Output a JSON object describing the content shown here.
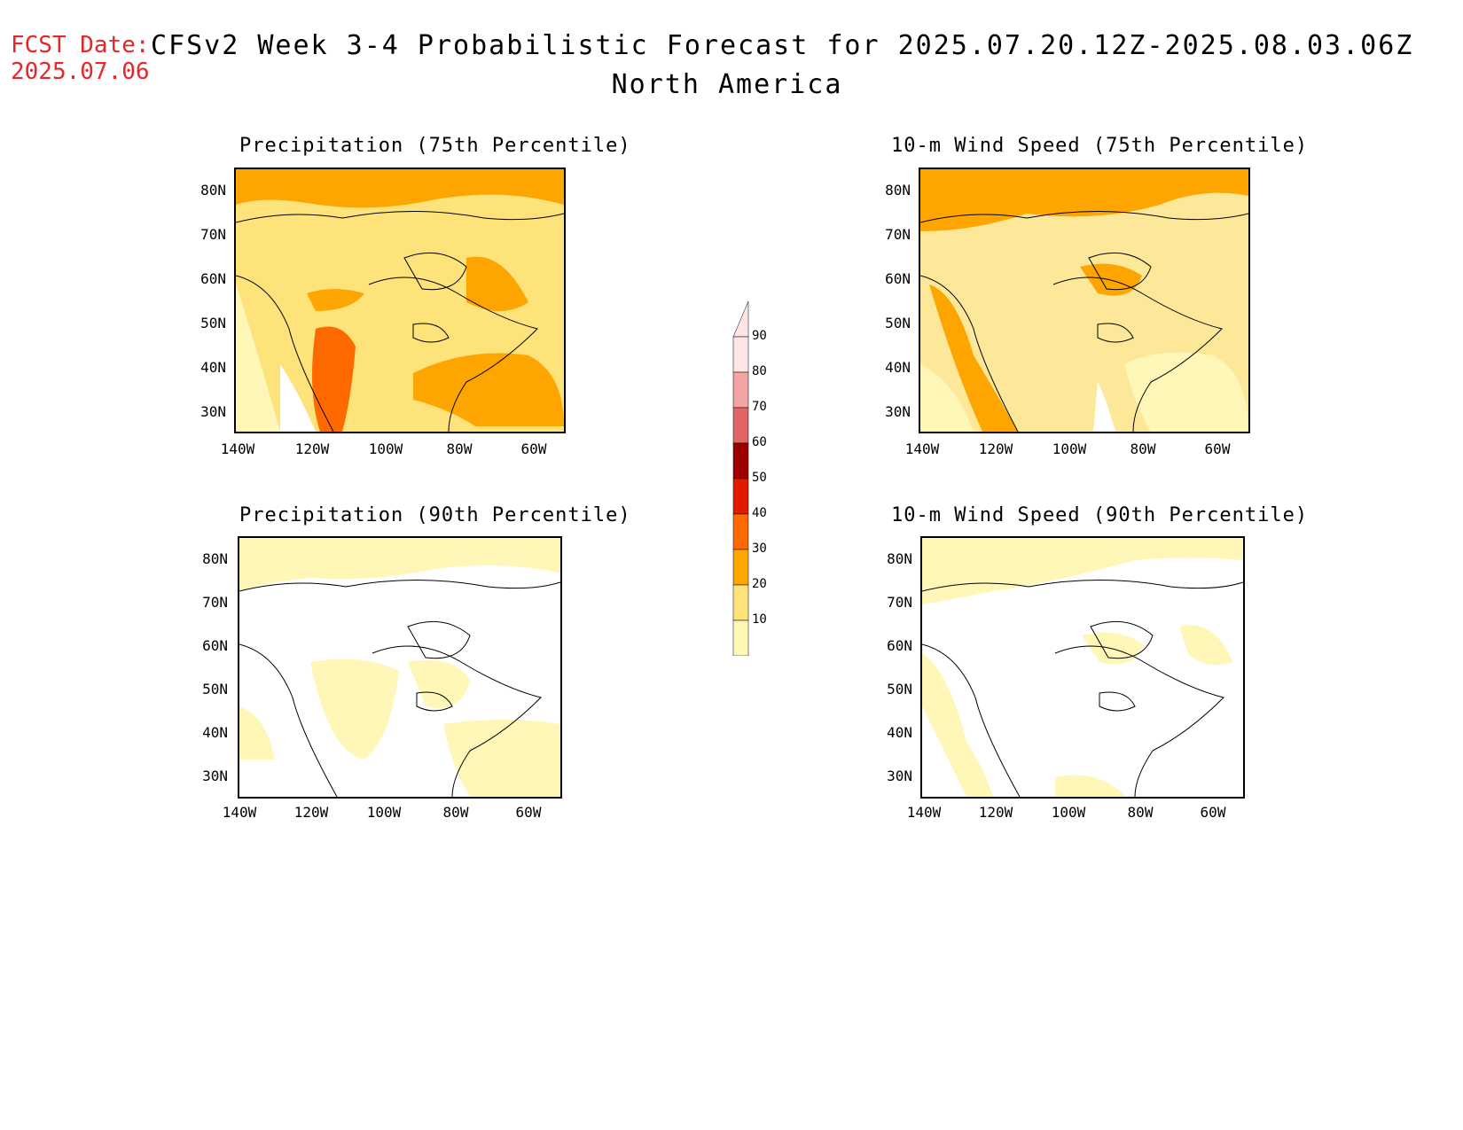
{
  "header": {
    "fcst_label": "FCST Date:",
    "fcst_date": "2025.07.06",
    "title": "CFSv2 Week 3-4 Probabilistic Forecast for 2025.07.20.12Z-2025.08.03.06Z",
    "subtitle": "North America"
  },
  "lat_ticks": [
    "80N",
    "70N",
    "60N",
    "50N",
    "40N",
    "30N"
  ],
  "lon_ticks": [
    "140W",
    "120W",
    "100W",
    "80W",
    "60W"
  ],
  "panels": [
    {
      "title": "Precipitation (75th Percentile)",
      "dominant_color": "#fde37a"
    },
    {
      "title": "10-m Wind Speed (75th Percentile)",
      "dominant_color": "#fde899"
    },
    {
      "title": "Precipitation (90th Percentile)",
      "dominant_color": "#fff7b8"
    },
    {
      "title": "10-m Wind Speed (90th Percentile)",
      "dominant_color": "#ffffff"
    }
  ],
  "colorbar": {
    "labels": [
      "90",
      "80",
      "70",
      "60",
      "50",
      "40",
      "30",
      "20",
      "10"
    ],
    "colors": [
      "#ffe6e6",
      "#f4a3a3",
      "#e06666",
      "#9e0000",
      "#e21b00",
      "#ff6a00",
      "#ffa500",
      "#fde37a",
      "#fff7b8"
    ]
  }
}
